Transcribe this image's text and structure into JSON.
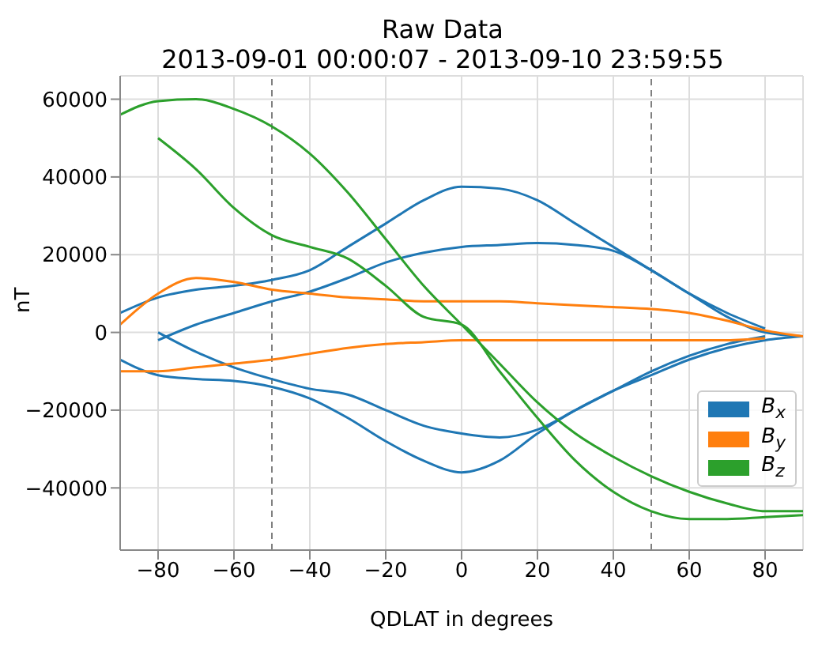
{
  "chart_data": {
    "type": "line",
    "title": "Raw Data",
    "subtitle": "2013-09-01 00:00:07 - 2013-09-10 23:59:55",
    "xlabel": "QDLAT in degrees",
    "ylabel": "nT",
    "x": [
      -90,
      -80,
      -70,
      -60,
      -50,
      -40,
      -30,
      -20,
      -10,
      0,
      10,
      20,
      30,
      40,
      50,
      60,
      70,
      80,
      90
    ],
    "series": [
      {
        "name": "B$_{x}$",
        "color": "#1f77b4",
        "values": [
          5000,
          9000,
          11000,
          12000,
          13500,
          16000,
          22000,
          28000,
          34000,
          37500,
          37000,
          34000,
          28000,
          22000,
          16000,
          10000,
          4000,
          0,
          -1000
        ]
      },
      {
        "color": "#1f77b4",
        "values": [
          null,
          -2000,
          2000,
          5000,
          8000,
          10500,
          14000,
          18000,
          20500,
          22000,
          22500,
          23000,
          22500,
          21000,
          16000,
          10000,
          5000,
          1000,
          null
        ]
      },
      {
        "color": "#1f77b4",
        "values": [
          -7000,
          -11000,
          -12000,
          -12500,
          -14000,
          -17000,
          -22000,
          -28000,
          -33000,
          -36000,
          -33000,
          -26000,
          -20000,
          -15000,
          -11000,
          -7000,
          -4000,
          -2000,
          -1000
        ]
      },
      {
        "color": "#1f77b4",
        "values": [
          null,
          0,
          -5000,
          -9000,
          -12000,
          -14500,
          -16000,
          -20000,
          -24000,
          -26000,
          -27000,
          -25000,
          -20000,
          -15000,
          -10000,
          -6000,
          -3000,
          -1000,
          null
        ]
      },
      {
        "name": "B$_{y}$",
        "color": "#ff7f0e",
        "values": [
          2000,
          10000,
          14000,
          13000,
          11000,
          10000,
          9000,
          8500,
          8000,
          8000,
          8000,
          7500,
          7000,
          6500,
          6000,
          5000,
          3000,
          500,
          -1000
        ]
      },
      {
        "color": "#ff7f0e",
        "values": [
          -10000,
          -10000,
          -9000,
          -8000,
          -7000,
          -5500,
          -4000,
          -3000,
          -2500,
          -2000,
          -2000,
          -2000,
          -2000,
          -2000,
          -2000,
          -2000,
          -2000,
          -1500,
          null
        ]
      },
      {
        "name": "B$_{z}$",
        "color": "#2ca02c",
        "values": [
          56000,
          59500,
          60000,
          57500,
          53000,
          46000,
          36000,
          24000,
          12000,
          2000,
          -8000,
          -18000,
          -26000,
          -32000,
          -37000,
          -41000,
          -44000,
          -46000,
          -46000
        ]
      },
      {
        "color": "#2ca02c",
        "values": [
          null,
          50000,
          42000,
          32000,
          25000,
          22000,
          19000,
          12000,
          4000,
          2000,
          -10000,
          -22000,
          -33000,
          -41000,
          -46000,
          -48000,
          -48000,
          -47500,
          -47000
        ]
      }
    ],
    "xlim": [
      -90,
      90
    ],
    "ylim": [
      -56000,
      66000
    ],
    "xticks": [
      -80,
      -60,
      -40,
      -20,
      0,
      20,
      40,
      60,
      80
    ],
    "yticks": [
      -40000,
      -20000,
      0,
      20000,
      40000,
      60000
    ],
    "ref_lines": [
      {
        "axis": "x",
        "value": -50,
        "color": "#808080",
        "line_style": "dashed"
      },
      {
        "axis": "x",
        "value": 50,
        "color": "#808080",
        "line_style": "dashed"
      }
    ],
    "grid": true,
    "legend": "bottom right",
    "marker": "none",
    "line_style": "solid"
  }
}
